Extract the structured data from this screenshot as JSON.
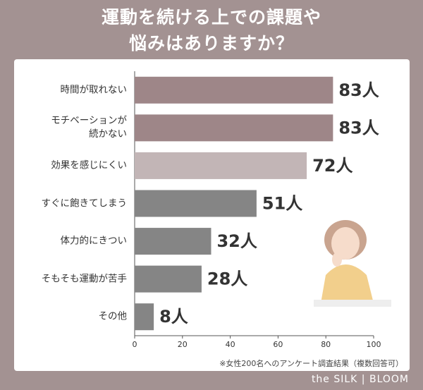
{
  "title": "運動を続ける上での課題や\n悩みはありますか？",
  "chart_data": {
    "type": "bar",
    "orientation": "horizontal",
    "categories": [
      "時間が取れない",
      "モチベーションが\n続かない",
      "効果を感じにくい",
      "すぐに飽きてしまう",
      "体力的にきつい",
      "そもそも運動が苦手",
      "その他"
    ],
    "values": [
      83,
      83,
      72,
      51,
      32,
      28,
      8
    ],
    "value_labels": [
      "83人",
      "83人",
      "72人",
      "51人",
      "32人",
      "28人",
      "8人"
    ],
    "colors": [
      "#9e8688",
      "#9e8688",
      "#c2b5b6",
      "#858585",
      "#858585",
      "#858585",
      "#858585"
    ],
    "xlim": [
      0,
      100
    ],
    "xticks": [
      0,
      20,
      40,
      60,
      80,
      100
    ],
    "note": "※女性200名へのアンケート調査結果（複数回答可）"
  },
  "brand": "the SILK | BLOOM"
}
